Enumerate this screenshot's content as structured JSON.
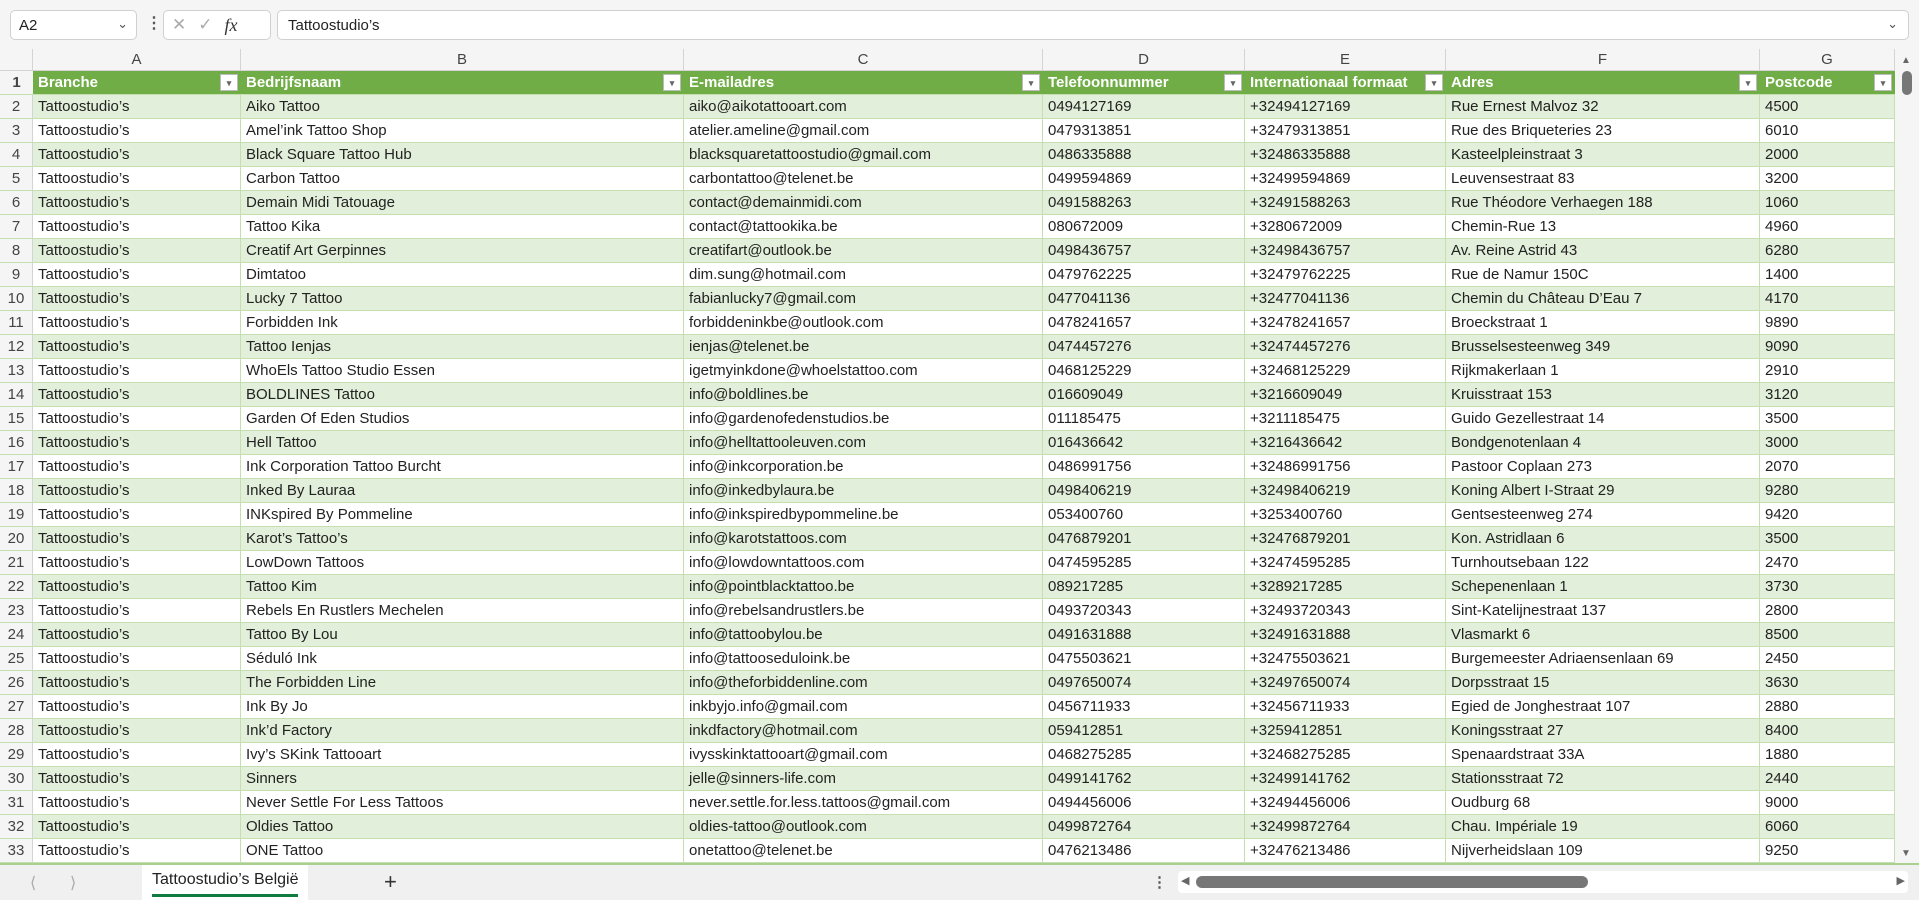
{
  "formula_bar": {
    "name_box": "A2",
    "formula": "Tattoostudio’s",
    "fx_label": "fx"
  },
  "sheet": {
    "column_letters": [
      "A",
      "B",
      "C",
      "D",
      "E",
      "F",
      "G"
    ],
    "headers": [
      "Branche",
      "Bedrijfsnaam",
      "E-mailadres",
      "Telefoonnummer",
      "Internationaal formaat",
      "Adres",
      "Postcode"
    ],
    "header_fill": "#70ad47",
    "band_fill": "#e2efda",
    "rows": [
      [
        "Tattoostudio’s",
        "Aiko Tattoo",
        "aiko@aikotattooart.com",
        "0494127169",
        "+32494127169",
        "Rue Ernest Malvoz 32",
        "4500"
      ],
      [
        "Tattoostudio’s",
        "Amel’ink Tattoo Shop",
        "atelier.ameline@gmail.com",
        "0479313851",
        "+32479313851",
        "Rue des Briqueteries 23",
        "6010"
      ],
      [
        "Tattoostudio’s",
        "Black Square Tattoo Hub",
        "blacksquaretattoostudio@gmail.com",
        "0486335888",
        "+32486335888",
        "Kasteelpleinstraat 3",
        "2000"
      ],
      [
        "Tattoostudio’s",
        "Carbon Tattoo",
        "carbontattoo@telenet.be",
        "0499594869",
        "+32499594869",
        "Leuvensestraat 83",
        "3200"
      ],
      [
        "Tattoostudio’s",
        "Demain Midi Tatouage",
        "contact@demainmidi.com",
        "0491588263",
        "+32491588263",
        "Rue Théodore Verhaegen 188",
        "1060"
      ],
      [
        "Tattoostudio’s",
        "Tattoo Kika",
        "contact@tattookika.be",
        "080672009",
        "+3280672009",
        "Chemin-Rue 13",
        "4960"
      ],
      [
        "Tattoostudio’s",
        "Creatif Art Gerpinnes",
        "creatifart@outlook.be",
        "0498436757",
        "+32498436757",
        "Av. Reine Astrid 43",
        "6280"
      ],
      [
        "Tattoostudio’s",
        "Dimtatoo",
        "dim.sung@hotmail.com",
        "0479762225",
        "+32479762225",
        "Rue de Namur 150C",
        "1400"
      ],
      [
        "Tattoostudio’s",
        "Lucky 7 Tattoo",
        "fabianlucky7@gmail.com",
        "0477041136",
        "+32477041136",
        "Chemin du Château D’Eau 7",
        "4170"
      ],
      [
        "Tattoostudio’s",
        "Forbidden Ink",
        "forbiddeninkbe@outlook.com",
        "0478241657",
        "+32478241657",
        "Broeckstraat 1",
        "9890"
      ],
      [
        "Tattoostudio’s",
        "Tattoo Ienjas",
        "ienjas@telenet.be",
        "0474457276",
        "+32474457276",
        "Brusselsesteenweg 349",
        "9090"
      ],
      [
        "Tattoostudio’s",
        "WhoEls Tattoo Studio Essen",
        "igetmyinkdone@whoelstattoo.com",
        "0468125229",
        "+32468125229",
        "Rijkmakerlaan 1",
        "2910"
      ],
      [
        "Tattoostudio’s",
        "BOLDLINES Tattoo",
        "info@boldlines.be",
        "016609049",
        "+3216609049",
        "Kruisstraat 153",
        "3120"
      ],
      [
        "Tattoostudio’s",
        "Garden Of Eden Studios",
        "info@gardenofedenstudios.be",
        "011185475",
        "+3211185475",
        "Guido Gezellestraat 14",
        "3500"
      ],
      [
        "Tattoostudio’s",
        "Hell Tattoo",
        "info@helltattooleuven.com",
        "016436642",
        "+3216436642",
        "Bondgenotenlaan 4",
        "3000"
      ],
      [
        "Tattoostudio’s",
        "Ink Corporation Tattoo Burcht",
        "info@inkcorporation.be",
        "0486991756",
        "+32486991756",
        "Pastoor Coplaan 273",
        "2070"
      ],
      [
        "Tattoostudio’s",
        "Inked By Lauraa",
        "info@inkedbylaura.be",
        "0498406219",
        "+32498406219",
        "Koning Albert I-Straat 29",
        "9280"
      ],
      [
        "Tattoostudio’s",
        "INKspired By Pommeline",
        "info@inkspiredbypommeline.be",
        "053400760",
        "+3253400760",
        "Gentsesteenweg 274",
        "9420"
      ],
      [
        "Tattoostudio’s",
        "Karot’s Tattoo’s",
        "info@karotstattoos.com",
        "0476879201",
        "+32476879201",
        "Kon. Astridlaan 6",
        "3500"
      ],
      [
        "Tattoostudio’s",
        "LowDown Tattoos",
        "info@lowdowntattoos.com",
        "0474595285",
        "+32474595285",
        "Turnhoutsebaan 122",
        "2470"
      ],
      [
        "Tattoostudio’s",
        "Tattoo Kim",
        "info@pointblacktattoo.be",
        "089217285",
        "+3289217285",
        "Schepenenlaan 1",
        "3730"
      ],
      [
        "Tattoostudio’s",
        "Rebels En Rustlers Mechelen",
        "info@rebelsandrustlers.be",
        "0493720343",
        "+32493720343",
        "Sint-Katelijnestraat 137",
        "2800"
      ],
      [
        "Tattoostudio’s",
        "Tattoo By Lou",
        "info@tattoobylou.be",
        "0491631888",
        "+32491631888",
        "Vlasmarkt 6",
        "8500"
      ],
      [
        "Tattoostudio’s",
        "Séduló Ink",
        "info@tattooseduloink.be",
        "0475503621",
        "+32475503621",
        "Burgemeester Adriaensenlaan 69",
        "2450"
      ],
      [
        "Tattoostudio’s",
        "The Forbidden Line",
        "info@theforbiddenline.com",
        "0497650074",
        "+32497650074",
        "Dorpsstraat 15",
        "3630"
      ],
      [
        "Tattoostudio’s",
        "Ink By Jo",
        "inkbyjo.info@gmail.com",
        "0456711933",
        "+32456711933",
        "Egied de Jonghestraat 107",
        "2880"
      ],
      [
        "Tattoostudio’s",
        "Ink’d Factory",
        "inkdfactory@hotmail.com",
        "059412851",
        "+3259412851",
        "Koningsstraat 27",
        "8400"
      ],
      [
        "Tattoostudio’s",
        "Ivy’s SKink Tattooart",
        "ivysskinktattooart@gmail.com",
        "0468275285",
        "+32468275285",
        "Spenaardstraat 33A",
        "1880"
      ],
      [
        "Tattoostudio’s",
        "Sinners",
        "jelle@sinners-life.com",
        "0499141762",
        "+32499141762",
        "Stationsstraat 72",
        "2440"
      ],
      [
        "Tattoostudio’s",
        "Never Settle For Less Tattoos",
        "never.settle.for.less.tattoos@gmail.com",
        "0494456006",
        "+32494456006",
        "Oudburg 68",
        "9000"
      ],
      [
        "Tattoostudio’s",
        "Oldies Tattoo",
        "oldies-tattoo@outlook.com",
        "0499872764",
        "+32499872764",
        "Chau. Impériale 19",
        "6060"
      ],
      [
        "Tattoostudio’s",
        "ONE Tattoo",
        "onetattoo@telenet.be",
        "0476213486",
        "+32476213486",
        "Nijverheidslaan 109",
        "9250"
      ]
    ]
  },
  "tabs": {
    "active": "Tattoostudio’s België",
    "add_label": "+"
  }
}
